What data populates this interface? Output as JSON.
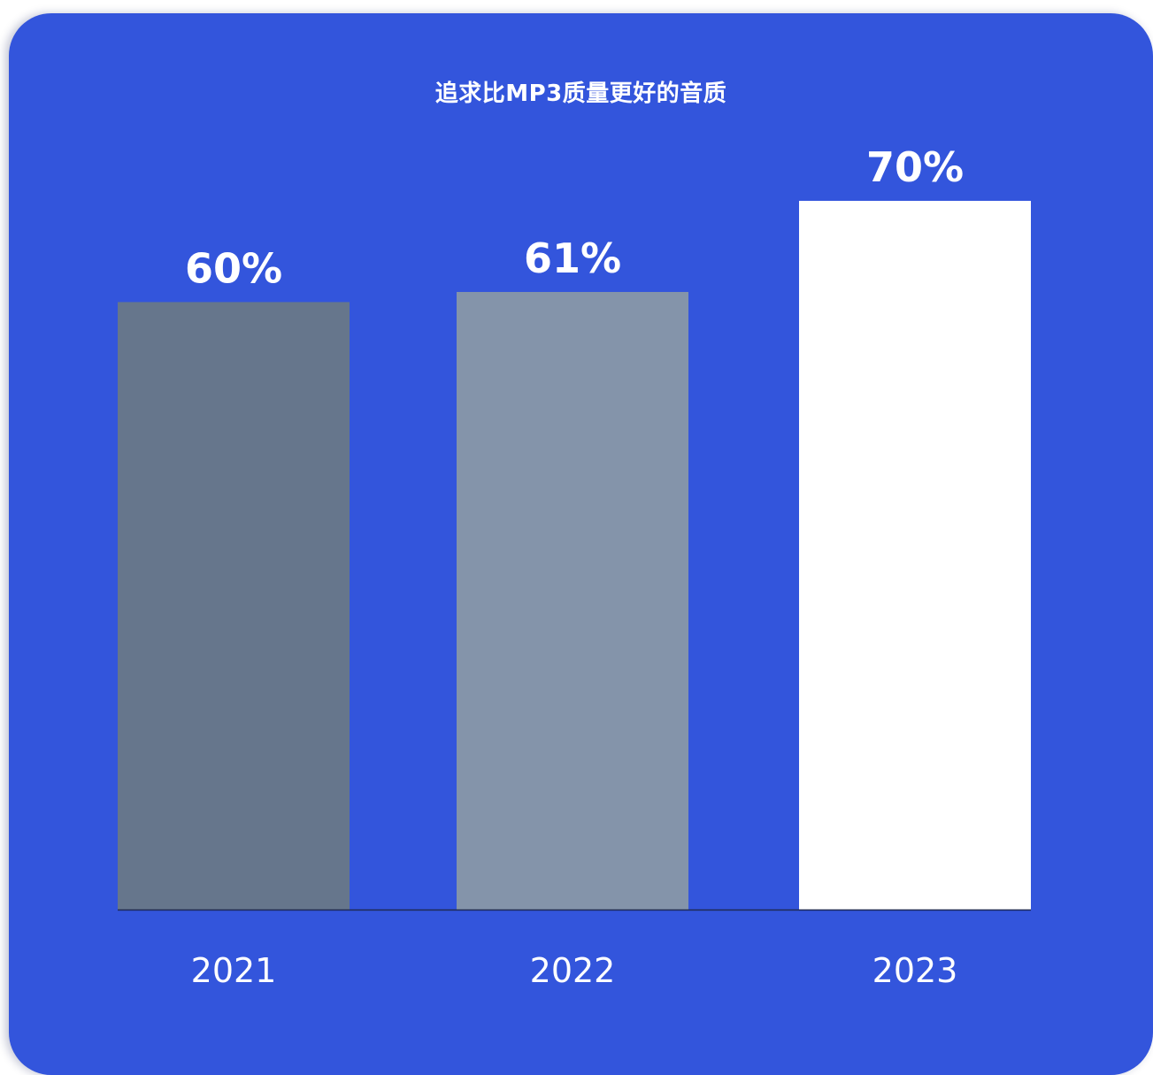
{
  "chart_data": {
    "type": "bar",
    "title": "追求比MP3质量更好的音质",
    "categories": [
      "2021",
      "2022",
      "2023"
    ],
    "values": [
      60,
      61,
      70
    ],
    "value_labels": [
      "60%",
      "61%",
      "70%"
    ],
    "unit": "%",
    "ylim": [
      0,
      70
    ],
    "grid": false,
    "legend": "none",
    "xlabel": "",
    "ylabel": ""
  },
  "colors": {
    "background": "#3355dc",
    "bars": [
      "#66768c",
      "#8494aa",
      "#ffffff"
    ],
    "baseline": "#1f2a55",
    "text": "#ffffff"
  }
}
